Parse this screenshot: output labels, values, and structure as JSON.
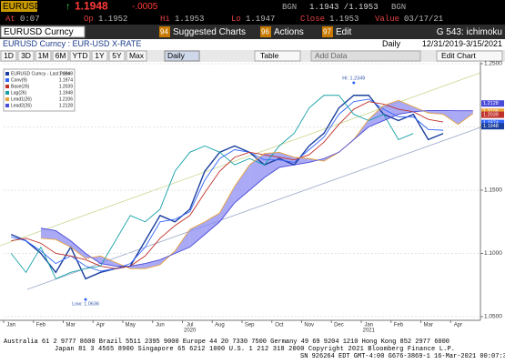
{
  "header": {
    "ticker": "EURUSD",
    "arrow": "↑",
    "last": "1.1948",
    "change": "-.0005",
    "bid_label": "BGN",
    "bid_ask": "1.1943 /1.1953",
    "ask_label": "BGN",
    "at_label": "At",
    "at": "0:07",
    "op_label": "Op",
    "op": "1.1952",
    "hi_label": "Hi",
    "hi": "1.1953",
    "lo_label": "Lo",
    "lo": "1.1947",
    "close_label": "Close",
    "close": "1.1953",
    "value_label": "Value",
    "value": "03/17/21"
  },
  "toolbar": {
    "security": "EURUSD Curncy",
    "suggested_num": "94",
    "suggested": "Suggested Charts",
    "actions_num": "96",
    "actions": "Actions",
    "edit_num": "97",
    "edit": "Edit",
    "chart_id": "G 543: ichimoku"
  },
  "subheader": {
    "name": "EURUSD Curncy : EUR-USD X-RATE",
    "freq": "Daily",
    "range": "12/31/2019-3/15/2021"
  },
  "buttons": [
    "1D",
    "3D",
    "1M",
    "6M",
    "YTD",
    "1Y",
    "5Y",
    "Max"
  ],
  "period": "Daily",
  "table": "Table",
  "add_data": "Add Data",
  "edit_chart": "Edit Chart",
  "chart_data": {
    "type": "line",
    "categories": [
      "Jan",
      null,
      "Feb",
      null,
      "Mar",
      null,
      "Apr",
      null,
      "May",
      null,
      "Jun",
      null,
      "Jul",
      null,
      "Aug",
      null,
      "Sep",
      null,
      "Oct",
      null,
      "Nov",
      null,
      "Dec",
      null,
      "Jan",
      null,
      "Feb",
      null,
      "Mar",
      null,
      "Apr",
      null
    ],
    "years": [
      "2020",
      "2021"
    ],
    "ylim": [
      1.05,
      1.25
    ],
    "yticks": [
      {
        "value": 1.05,
        "label": "1.0500"
      },
      {
        "value": 1.1,
        "label": "1.1000"
      },
      {
        "value": 1.15,
        "label": "1.1500"
      },
      {
        "value": 1.2,
        "label": "1.2000"
      },
      {
        "value": 1.25,
        "label": "1.2500"
      }
    ],
    "grid": true,
    "series": [
      {
        "name": "EURUSD Curncy - Last Price",
        "color": "#1b3f9e",
        "last": 1.1948,
        "values": [
          1.115,
          1.11,
          1.1,
          1.085,
          1.105,
          1.08,
          1.085,
          1.088,
          1.09,
          1.11,
          1.13,
          1.125,
          1.135,
          1.165,
          1.18,
          1.185,
          1.18,
          1.17,
          1.175,
          1.17,
          1.185,
          1.195,
          1.215,
          1.225,
          1.225,
          1.21,
          1.205,
          1.21,
          1.19,
          1.1948,
          null,
          null
        ]
      },
      {
        "name": "Conv(9)",
        "color": "#3366ff",
        "last": 1.1974,
        "values": [
          1.113,
          1.11,
          1.102,
          1.092,
          1.098,
          1.09,
          1.086,
          1.088,
          1.092,
          1.105,
          1.125,
          1.127,
          1.133,
          1.158,
          1.175,
          1.182,
          1.18,
          1.174,
          1.174,
          1.172,
          1.182,
          1.192,
          1.21,
          1.22,
          1.222,
          1.214,
          1.208,
          1.208,
          1.198,
          1.1974,
          null,
          null
        ]
      },
      {
        "name": "Base(26)",
        "color": "#c0302a",
        "last": 1.2039,
        "values": [
          1.11,
          1.112,
          1.108,
          1.1,
          1.098,
          1.095,
          1.09,
          1.088,
          1.09,
          1.098,
          1.112,
          1.122,
          1.13,
          1.148,
          1.165,
          1.176,
          1.18,
          1.178,
          1.176,
          1.174,
          1.178,
          1.188,
          1.202,
          1.214,
          1.22,
          1.218,
          1.214,
          1.212,
          1.206,
          1.2039,
          null,
          null
        ]
      },
      {
        "name": "Lag(26)",
        "color": "#17a0a8",
        "last": 1.1948,
        "values": [
          1.1,
          1.085,
          1.105,
          1.08,
          1.085,
          1.088,
          1.09,
          1.11,
          1.13,
          1.125,
          1.135,
          1.165,
          1.18,
          1.185,
          1.18,
          1.17,
          1.175,
          1.17,
          1.185,
          1.195,
          1.215,
          1.225,
          1.225,
          1.21,
          1.205,
          1.21,
          1.19,
          1.1948,
          null,
          null,
          null,
          null
        ]
      },
      {
        "name": "Lead1(26)",
        "color": "#e8a33a",
        "last": 1.2106,
        "values": [
          null,
          null,
          1.112,
          1.111,
          1.105,
          1.096,
          1.098,
          1.093,
          1.088,
          1.088,
          1.091,
          1.102,
          1.119,
          1.125,
          1.132,
          1.153,
          1.17,
          1.179,
          1.18,
          1.176,
          1.175,
          1.173,
          1.18,
          1.19,
          1.206,
          1.217,
          1.221,
          1.216,
          1.211,
          1.21,
          1.202,
          1.2106
        ]
      },
      {
        "name": "Lead2(26)",
        "color": "#4a4ad8",
        "last": 1.2128,
        "values": [
          null,
          null,
          1.12,
          1.118,
          1.11,
          1.1,
          1.092,
          1.09,
          1.09,
          1.092,
          1.095,
          1.1,
          1.105,
          1.115,
          1.125,
          1.14,
          1.15,
          1.16,
          1.168,
          1.17,
          1.172,
          1.175,
          1.18,
          1.19,
          1.2,
          1.205,
          1.21,
          1.212,
          1.213,
          1.213,
          1.2128,
          1.2128
        ]
      }
    ],
    "cloud_color": "#8c8cf2",
    "annotations": [
      {
        "text": "Hi: 1.2349",
        "value": 1.2349
      },
      {
        "text": "Low: 1.0636",
        "value": 1.0636
      }
    ]
  },
  "footer": [
    "Australia 61 2 9777 8600 Brazil 5511 2395 9000 Europe 44 20 7330 7500 Germany 49 69 9204 1210 Hong Kong 852 2977 6000",
    "Japan 81 3 4565 8900    Singapore 65 6212 1000    U.S. 1 212 318 2000    Copyright 2021 Bloomberg Finance L.P.",
    "SN 926264 EDT  GMT-4:00 G676-3869-1 16-Mar-2021 00:07:30"
  ]
}
